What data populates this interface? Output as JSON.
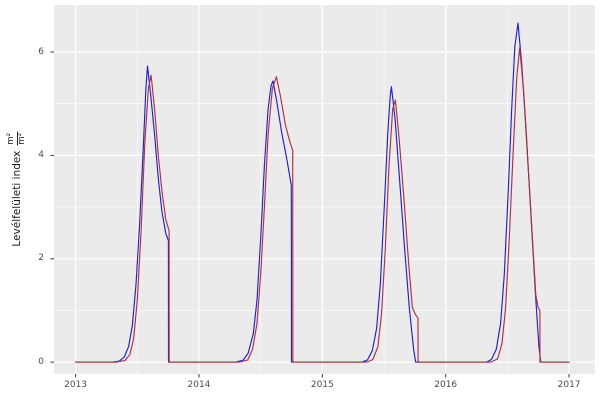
{
  "figure": {
    "background": "#ffffff",
    "panel_background": "#ebebeb",
    "grid_color": "#ffffff",
    "axis_text_color": "#4d4d4d",
    "axis_title_color": "#1a1a1a",
    "tick_mark_color": "#333333"
  },
  "chart_data": {
    "type": "line",
    "title": "",
    "xlabel": "",
    "ylabel": "Levélfelületi index m²/m²",
    "ylabel_text": "Levélfelületi index",
    "ylabel_fraction": {
      "numerator": "m²",
      "denominator": "m²"
    },
    "x_ticks": [
      2013,
      2014,
      2015,
      2016,
      2017
    ],
    "y_ticks": [
      0,
      2,
      4,
      6
    ],
    "x_minor": [
      2013.5,
      2014.5,
      2015.5,
      2016.5
    ],
    "y_minor": [
      1,
      3,
      5
    ],
    "xlim": [
      2012.825,
      2017.21
    ],
    "ylim": [
      -0.23,
      6.91
    ],
    "grid": "on",
    "legend_position": "none",
    "series": [
      {
        "name": "modelled-lai-blue",
        "color": "#1e1edc",
        "points": [
          [
            2013.0,
            0
          ],
          [
            2013.3,
            0
          ],
          [
            2013.355,
            0.02
          ],
          [
            2013.395,
            0.1
          ],
          [
            2013.43,
            0.3
          ],
          [
            2013.46,
            0.7
          ],
          [
            2013.49,
            1.5
          ],
          [
            2013.52,
            2.7
          ],
          [
            2013.55,
            4.2
          ],
          [
            2013.57,
            5.3
          ],
          [
            2013.583,
            5.73
          ],
          [
            2013.61,
            5.15
          ],
          [
            2013.64,
            4.4
          ],
          [
            2013.67,
            3.55
          ],
          [
            2013.7,
            2.9
          ],
          [
            2013.73,
            2.5
          ],
          [
            2013.752,
            2.35
          ],
          [
            2013.753,
            0
          ],
          [
            2014.3,
            0
          ],
          [
            2014.36,
            0.04
          ],
          [
            2014.4,
            0.18
          ],
          [
            2014.44,
            0.55
          ],
          [
            2014.47,
            1.2
          ],
          [
            2014.5,
            2.4
          ],
          [
            2014.53,
            3.8
          ],
          [
            2014.56,
            4.9
          ],
          [
            2014.585,
            5.35
          ],
          [
            2014.6,
            5.44
          ],
          [
            2014.63,
            5.05
          ],
          [
            2014.67,
            4.45
          ],
          [
            2014.71,
            3.95
          ],
          [
            2014.748,
            3.42
          ],
          [
            2014.75,
            0
          ],
          [
            2015.32,
            0
          ],
          [
            2015.365,
            0.04
          ],
          [
            2015.405,
            0.22
          ],
          [
            2015.44,
            0.65
          ],
          [
            2015.47,
            1.5
          ],
          [
            2015.5,
            2.9
          ],
          [
            2015.53,
            4.4
          ],
          [
            2015.55,
            5.15
          ],
          [
            2015.56,
            5.33
          ],
          [
            2015.59,
            4.7
          ],
          [
            2015.625,
            3.55
          ],
          [
            2015.665,
            2.25
          ],
          [
            2015.705,
            1.05
          ],
          [
            2015.74,
            0.25
          ],
          [
            2015.755,
            0.02
          ],
          [
            2015.756,
            0
          ],
          [
            2016.33,
            0
          ],
          [
            2016.37,
            0.05
          ],
          [
            2016.41,
            0.25
          ],
          [
            2016.445,
            0.75
          ],
          [
            2016.475,
            1.7
          ],
          [
            2016.505,
            3.2
          ],
          [
            2016.535,
            4.9
          ],
          [
            2016.56,
            6.1
          ],
          [
            2016.586,
            6.56
          ],
          [
            2016.615,
            5.8
          ],
          [
            2016.65,
            4.55
          ],
          [
            2016.69,
            2.9
          ],
          [
            2016.725,
            1.4
          ],
          [
            2016.755,
            0.3
          ],
          [
            2016.77,
            0.02
          ],
          [
            2016.771,
            0
          ],
          [
            2017.0,
            0
          ]
        ]
      },
      {
        "name": "measured-lai-red",
        "color": "#b03232",
        "points": [
          [
            2013.0,
            0
          ],
          [
            2013.33,
            0
          ],
          [
            2013.4,
            0.03
          ],
          [
            2013.44,
            0.15
          ],
          [
            2013.47,
            0.45
          ],
          [
            2013.5,
            1.2
          ],
          [
            2013.53,
            2.5
          ],
          [
            2013.56,
            4.2
          ],
          [
            2013.59,
            5.3
          ],
          [
            2013.612,
            5.55
          ],
          [
            2013.64,
            4.9
          ],
          [
            2013.67,
            4.0
          ],
          [
            2013.7,
            3.3
          ],
          [
            2013.726,
            2.85
          ],
          [
            2013.729,
            2.78
          ],
          [
            2013.748,
            2.62
          ],
          [
            2013.758,
            2.55
          ],
          [
            2013.759,
            0
          ],
          [
            2014.33,
            0
          ],
          [
            2014.395,
            0.04
          ],
          [
            2014.435,
            0.25
          ],
          [
            2014.47,
            0.75
          ],
          [
            2014.5,
            1.7
          ],
          [
            2014.53,
            3.0
          ],
          [
            2014.56,
            4.4
          ],
          [
            2014.595,
            5.3
          ],
          [
            2014.628,
            5.52
          ],
          [
            2014.66,
            5.15
          ],
          [
            2014.7,
            4.6
          ],
          [
            2014.735,
            4.28
          ],
          [
            2014.76,
            4.1
          ],
          [
            2014.761,
            0
          ],
          [
            2015.36,
            0
          ],
          [
            2015.41,
            0.05
          ],
          [
            2015.45,
            0.3
          ],
          [
            2015.48,
            0.95
          ],
          [
            2015.51,
            2.2
          ],
          [
            2015.54,
            3.8
          ],
          [
            2015.57,
            4.9
          ],
          [
            2015.592,
            5.07
          ],
          [
            2015.62,
            4.4
          ],
          [
            2015.66,
            3.2
          ],
          [
            2015.7,
            1.9
          ],
          [
            2015.73,
            1.05
          ],
          [
            2015.755,
            0.92
          ],
          [
            2015.775,
            0.85
          ],
          [
            2015.776,
            0
          ],
          [
            2016.365,
            0
          ],
          [
            2016.42,
            0.06
          ],
          [
            2016.455,
            0.35
          ],
          [
            2016.485,
            1.05
          ],
          [
            2016.515,
            2.4
          ],
          [
            2016.545,
            4.0
          ],
          [
            2016.575,
            5.5
          ],
          [
            2016.6,
            6.09
          ],
          [
            2016.63,
            5.3
          ],
          [
            2016.665,
            3.9
          ],
          [
            2016.7,
            2.5
          ],
          [
            2016.73,
            1.3
          ],
          [
            2016.75,
            1.05
          ],
          [
            2016.763,
            1.0
          ],
          [
            2016.764,
            0
          ],
          [
            2017.0,
            0
          ]
        ]
      }
    ]
  }
}
